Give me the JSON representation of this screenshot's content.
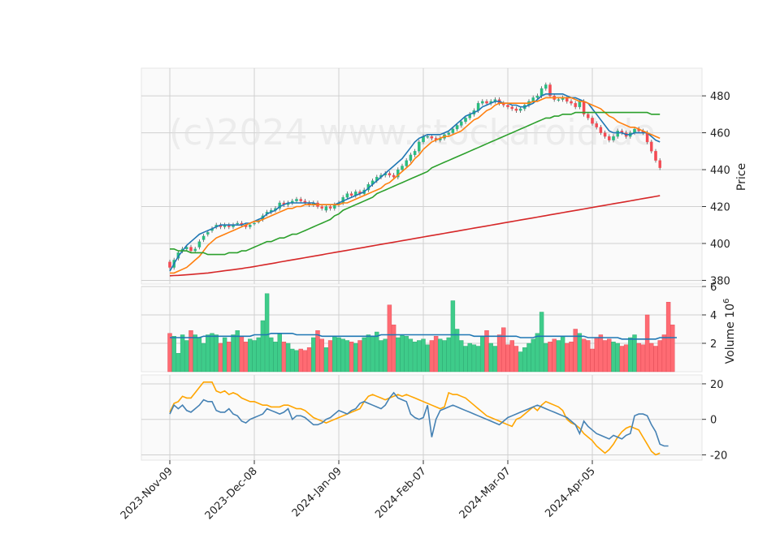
{
  "chart_data": {
    "type": "candlestick",
    "watermark": "(c)2024 www.stockaroid.de",
    "x_tick_labels": [
      "2023-Nov-09",
      "2023-Dec-08",
      "2024-Jan-09",
      "2024-Feb-07",
      "2024-Mar-07",
      "2024-Apr-05"
    ],
    "x_tick_index": [
      0,
      20,
      40,
      60,
      80,
      100
    ],
    "price_panel": {
      "ylabel": "Price",
      "ylim": [
        378,
        495
      ],
      "yticks": [
        380,
        400,
        420,
        440,
        460,
        480
      ],
      "close": [
        387,
        391,
        395,
        397,
        398,
        396,
        397,
        401,
        404,
        406,
        408,
        410,
        409,
        410,
        409,
        410,
        411,
        410,
        409,
        410,
        411,
        412,
        415,
        417,
        418,
        419,
        422,
        421,
        422,
        423,
        424,
        423,
        422,
        421,
        422,
        420,
        419,
        420,
        419,
        421,
        422,
        425,
        427,
        426,
        428,
        427,
        429,
        432,
        434,
        436,
        437,
        438,
        437,
        436,
        440,
        442,
        445,
        448,
        450,
        455,
        458,
        458,
        457,
        456,
        457,
        459,
        460,
        462,
        464,
        466,
        468,
        470,
        472,
        476,
        477,
        476,
        477,
        478,
        476,
        475,
        474,
        473,
        472,
        473,
        475,
        477,
        479,
        480,
        484,
        486,
        480,
        478,
        478,
        479,
        477,
        476,
        474,
        477,
        470,
        468,
        465,
        463,
        460,
        458,
        456,
        458,
        461,
        460,
        458,
        460,
        462,
        461,
        460,
        455,
        450,
        445,
        441
      ],
      "open": [
        390,
        387,
        392,
        396,
        397,
        398,
        396,
        398,
        402,
        405,
        407,
        409,
        410,
        409,
        410,
        409,
        411,
        411,
        410,
        409,
        411,
        412,
        413,
        416,
        417,
        418,
        419,
        422,
        421,
        422,
        423,
        424,
        423,
        422,
        421,
        422,
        420,
        418,
        420,
        419,
        421,
        422,
        425,
        427,
        426,
        428,
        427,
        429,
        432,
        434,
        436,
        437,
        438,
        437,
        436,
        440,
        442,
        445,
        448,
        450,
        455,
        458,
        458,
        457,
        456,
        457,
        459,
        460,
        462,
        464,
        466,
        468,
        470,
        472,
        476,
        477,
        476,
        477,
        478,
        476,
        475,
        474,
        473,
        472,
        473,
        475,
        477,
        479,
        480,
        484,
        486,
        480,
        478,
        478,
        479,
        477,
        476,
        474,
        477,
        470,
        468,
        465,
        463,
        460,
        458,
        456,
        458,
        461,
        460,
        458,
        460,
        462,
        461,
        460,
        455,
        450,
        445
      ],
      "series": [
        {
          "name": "",
          "color": "#1f77b4",
          "values": [
            385,
            389,
            393,
            396,
            399,
            401,
            403,
            405,
            406,
            407,
            408,
            409,
            410,
            410,
            410,
            410,
            410,
            410,
            411,
            411,
            412,
            413,
            414,
            416,
            417,
            418,
            420,
            421,
            422,
            422,
            422,
            422,
            422,
            422,
            422,
            421,
            421,
            421,
            421,
            421,
            422,
            423,
            424,
            425,
            426,
            427,
            428,
            430,
            432,
            434,
            436,
            438,
            440,
            442,
            444,
            446,
            449,
            452,
            455,
            457,
            458,
            459,
            459,
            459,
            459,
            460,
            461,
            463,
            465,
            467,
            469,
            470,
            471,
            472,
            474,
            475,
            476,
            477,
            477,
            476,
            476,
            475,
            475,
            474,
            474,
            475,
            476,
            478,
            480,
            481,
            481,
            481,
            481,
            481,
            480,
            479,
            479,
            478,
            477,
            476,
            473,
            470,
            467,
            464,
            461,
            460,
            460,
            460,
            459,
            459,
            460,
            460,
            460,
            460,
            458,
            456,
            455
          ]
        },
        {
          "name": "",
          "color": "#ff7f0e",
          "values": [
            384,
            384,
            385,
            386,
            387,
            389,
            391,
            393,
            396,
            399,
            401,
            403,
            404,
            405,
            406,
            407,
            408,
            409,
            410,
            411,
            412,
            412,
            413,
            414,
            415,
            416,
            417,
            418,
            419,
            419,
            420,
            420,
            421,
            421,
            421,
            421,
            421,
            421,
            421,
            421,
            421,
            422,
            422,
            423,
            424,
            425,
            426,
            427,
            428,
            429,
            430,
            432,
            433,
            435,
            437,
            439,
            441,
            443,
            446,
            448,
            451,
            453,
            455,
            456,
            457,
            458,
            458,
            459,
            460,
            461,
            463,
            465,
            467,
            468,
            470,
            472,
            473,
            475,
            476,
            476,
            476,
            476,
            476,
            476,
            476,
            476,
            477,
            477,
            478,
            479,
            479,
            479,
            479,
            479,
            479,
            479,
            478,
            477,
            477,
            476,
            475,
            474,
            473,
            471,
            469,
            468,
            466,
            465,
            464,
            463,
            463,
            462,
            461,
            460,
            459,
            458,
            457
          ]
        },
        {
          "name": "",
          "color": "#2ca02c",
          "values": [
            397,
            397,
            396,
            396,
            396,
            395,
            395,
            395,
            395,
            394,
            394,
            394,
            394,
            394,
            395,
            395,
            395,
            396,
            396,
            397,
            398,
            399,
            400,
            401,
            401,
            402,
            403,
            403,
            404,
            405,
            405,
            406,
            407,
            408,
            409,
            410,
            411,
            412,
            413,
            415,
            416,
            418,
            419,
            420,
            421,
            422,
            423,
            424,
            425,
            427,
            428,
            429,
            430,
            431,
            432,
            433,
            434,
            435,
            436,
            437,
            438,
            439,
            441,
            442,
            443,
            444,
            445,
            446,
            447,
            448,
            449,
            450,
            451,
            452,
            453,
            454,
            455,
            456,
            457,
            458,
            459,
            460,
            461,
            462,
            463,
            464,
            465,
            466,
            467,
            468,
            468,
            469,
            469,
            470,
            470,
            470,
            471,
            471,
            471,
            471,
            471,
            471,
            471,
            471,
            471,
            471,
            471,
            471,
            471,
            471,
            471,
            471,
            471,
            471,
            470,
            470,
            470
          ]
        },
        {
          "name": "",
          "color": "#d62728",
          "values": [
            382.5,
            382.6,
            382.7,
            382.9,
            383.0,
            383.2,
            383.4,
            383.6,
            383.8,
            384.0,
            384.3,
            384.6,
            384.9,
            385.2,
            385.5,
            385.8,
            386.1,
            386.4,
            386.8,
            387.1,
            387.5,
            387.9,
            388.3,
            388.7,
            389.1,
            389.5,
            389.9,
            390.3,
            390.7,
            391.1,
            391.5,
            391.9,
            392.3,
            392.7,
            393.1,
            393.5,
            393.9,
            394.3,
            394.7,
            395.1,
            395.5,
            395.9,
            396.3,
            396.7,
            397.1,
            397.5,
            397.9,
            398.3,
            398.7,
            399.1,
            399.5,
            399.9,
            400.3,
            400.7,
            401.1,
            401.5,
            401.9,
            402.3,
            402.7,
            403.1,
            403.5,
            403.9,
            404.3,
            404.7,
            405.1,
            405.5,
            405.9,
            406.3,
            406.7,
            407.1,
            407.5,
            407.9,
            408.3,
            408.7,
            409.1,
            409.5,
            409.9,
            410.3,
            410.7,
            411.1,
            411.5,
            411.9,
            412.3,
            412.7,
            413.1,
            413.5,
            413.9,
            414.3,
            414.7,
            415.1,
            415.5,
            415.9,
            416.3,
            416.7,
            417.1,
            417.5,
            417.9,
            418.3,
            418.7,
            419.1,
            419.5,
            419.9,
            420.3,
            420.7,
            421.1,
            421.5,
            421.9,
            422.3,
            422.7,
            423.1,
            423.5,
            423.9,
            424.3,
            424.7,
            425.1,
            425.5,
            425.9
          ]
        }
      ]
    },
    "volume_panel": {
      "ylabel": "Volume  10",
      "ylabel_exponent": "6",
      "ylim": [
        0,
        6
      ],
      "yticks": [
        2,
        4,
        6
      ],
      "values": [
        2.7,
        2.5,
        1.3,
        2.6,
        2.2,
        2.9,
        2.6,
        2.4,
        2.0,
        2.6,
        2.7,
        2.6,
        2.0,
        2.4,
        2.1,
        2.6,
        2.9,
        2.5,
        2.1,
        2.3,
        2.2,
        2.4,
        3.6,
        5.5,
        2.4,
        2.1,
        2.7,
        2.1,
        2.0,
        1.6,
        1.5,
        1.6,
        1.5,
        1.7,
        2.4,
        2.9,
        2.3,
        1.7,
        2.2,
        2.5,
        2.4,
        2.3,
        2.2,
        2.1,
        2.0,
        2.2,
        2.4,
        2.6,
        2.5,
        2.8,
        2.2,
        2.3,
        4.7,
        3.3,
        2.4,
        2.6,
        2.5,
        2.3,
        2.1,
        2.2,
        2.3,
        1.9,
        2.2,
        2.5,
        2.3,
        2.2,
        2.4,
        5.0,
        3.0,
        2.2,
        1.8,
        2.0,
        1.9,
        1.8,
        2.5,
        2.9,
        2.0,
        1.8,
        2.6,
        3.1,
        1.9,
        2.2,
        1.8,
        1.4,
        1.7,
        2.0,
        2.3,
        2.7,
        4.2,
        2.0,
        2.1,
        2.3,
        2.2,
        2.5,
        2.0,
        2.1,
        3.0,
        2.7,
        2.3,
        2.2,
        1.6,
        2.4,
        2.6,
        2.2,
        2.3,
        2.1,
        2.0,
        1.8,
        1.9,
        2.4,
        2.6,
        2.0,
        1.9,
        4.0,
        2.0,
        1.8,
        2.2,
        2.6,
        4.9,
        3.3
      ],
      "ma_color": "#1f77b4",
      "ma": [
        2.4,
        2.4,
        2.4,
        2.4,
        2.4,
        2.4,
        2.4,
        2.4,
        2.5,
        2.5,
        2.5,
        2.5,
        2.5,
        2.5,
        2.5,
        2.5,
        2.5,
        2.5,
        2.5,
        2.5,
        2.6,
        2.6,
        2.6,
        2.6,
        2.7,
        2.7,
        2.7,
        2.7,
        2.7,
        2.7,
        2.6,
        2.6,
        2.6,
        2.6,
        2.6,
        2.6,
        2.5,
        2.5,
        2.5,
        2.5,
        2.5,
        2.5,
        2.5,
        2.5,
        2.5,
        2.5,
        2.5,
        2.5,
        2.5,
        2.5,
        2.6,
        2.6,
        2.6,
        2.6,
        2.6,
        2.6,
        2.6,
        2.6,
        2.6,
        2.6,
        2.6,
        2.6,
        2.6,
        2.6,
        2.6,
        2.6,
        2.6,
        2.6,
        2.6,
        2.6,
        2.6,
        2.6,
        2.5,
        2.5,
        2.5,
        2.5,
        2.5,
        2.5,
        2.5,
        2.5,
        2.5,
        2.5,
        2.5,
        2.4,
        2.4,
        2.4,
        2.4,
        2.5,
        2.5,
        2.5,
        2.5,
        2.5,
        2.5,
        2.5,
        2.5,
        2.5,
        2.5,
        2.5,
        2.5,
        2.4,
        2.4,
        2.4,
        2.4,
        2.4,
        2.4,
        2.4,
        2.4,
        2.3,
        2.3,
        2.3,
        2.3,
        2.3,
        2.3,
        2.3,
        2.3,
        2.3,
        2.4,
        2.4,
        2.4,
        2.4,
        2.4
      ]
    },
    "oscillator_panel": {
      "ylim": [
        -23,
        25
      ],
      "yticks": [
        -20,
        0,
        20
      ],
      "series": [
        {
          "name": "",
          "color": "#ffa500",
          "values": [
            4,
            9,
            10,
            13,
            12,
            12,
            15,
            18,
            21,
            21,
            21,
            16,
            15,
            16,
            14,
            15,
            14,
            12,
            11,
            10,
            10,
            9,
            8,
            8,
            7,
            7,
            7,
            8,
            8,
            7,
            6,
            6,
            5,
            3,
            1,
            0,
            -1,
            -2,
            -1,
            0,
            1,
            2,
            3,
            4,
            5,
            6,
            10,
            13,
            14,
            13,
            12,
            11,
            12,
            13,
            14,
            13,
            14,
            13,
            12,
            11,
            10,
            9,
            8,
            7,
            6,
            7,
            15,
            14,
            14,
            13,
            12,
            10,
            8,
            6,
            4,
            2,
            1,
            0,
            -1,
            -2,
            -3,
            -4,
            0,
            1,
            3,
            5,
            7,
            5,
            8,
            10,
            9,
            8,
            7,
            5,
            0,
            -2,
            -3,
            -5,
            -8,
            -10,
            -12,
            -15,
            -17,
            -19,
            -17,
            -14,
            -10,
            -7,
            -5,
            -4,
            -5,
            -6,
            -10,
            -14,
            -18,
            -20,
            -19
          ]
        },
        {
          "name": "",
          "color": "#4682b4",
          "values": [
            3,
            8,
            6,
            8,
            5,
            4,
            6,
            8,
            11,
            10,
            10,
            5,
            4,
            4,
            6,
            3,
            2,
            -1,
            -2,
            0,
            1,
            2,
            3,
            6,
            5,
            4,
            3,
            4,
            6,
            0,
            2,
            2,
            1,
            -1,
            -3,
            -3,
            -2,
            0,
            1,
            3,
            5,
            4,
            3,
            5,
            6,
            9,
            10,
            9,
            8,
            7,
            6,
            8,
            12,
            15,
            12,
            11,
            10,
            3,
            1,
            0,
            1,
            8,
            -10,
            0,
            5,
            6,
            7,
            8,
            7,
            6,
            5,
            4,
            3,
            2,
            1,
            0,
            -1,
            -2,
            -3,
            -1,
            1,
            2,
            3,
            4,
            5,
            6,
            7,
            8,
            7,
            6,
            5,
            4,
            3,
            2,
            1,
            -1,
            -3,
            -8,
            -1,
            -4,
            -6,
            -8,
            -9,
            -10,
            -11,
            -9,
            -10,
            -11,
            -9,
            -8,
            2,
            3,
            3,
            2,
            -3,
            -7,
            -14,
            -15,
            -15
          ]
        }
      ]
    }
  }
}
